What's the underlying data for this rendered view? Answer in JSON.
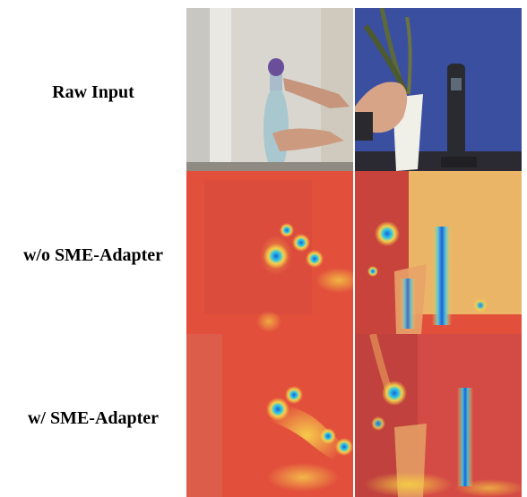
{
  "rows": [
    {
      "label": "Raw Input"
    },
    {
      "label": "w/o SME-Adapter"
    },
    {
      "label": "w/ SME-Adapter"
    }
  ],
  "scenes": [
    {
      "description": "hand-opening-bottle"
    },
    {
      "description": "hand-touching-plant-pot"
    }
  ],
  "colors": {
    "heat_red": "#e2503c",
    "heat_yellow": "#f4d24a",
    "heat_blue": "#1a63d6",
    "wall_blue": "#3b4fa0"
  }
}
